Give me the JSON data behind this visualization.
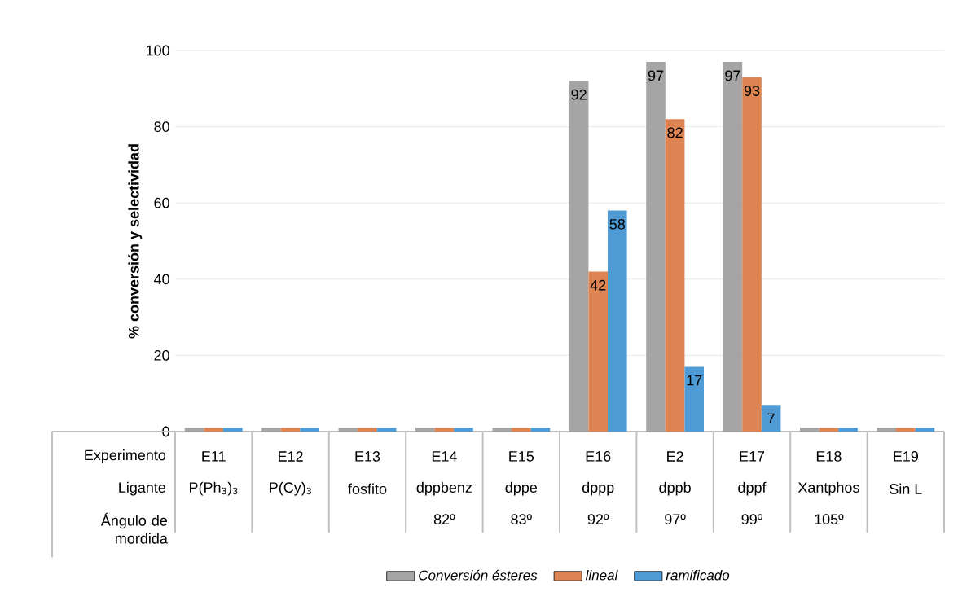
{
  "chart_data": {
    "type": "bar",
    "ylabel": "% conversión y selectividad",
    "categories": [
      "E11",
      "E12",
      "E13",
      "E14",
      "E15",
      "E16",
      "E2",
      "E17",
      "E18",
      "E19"
    ],
    "series": [
      {
        "name": "Conversión ésteres",
        "color": "#a5a5a5",
        "values": [
          1,
          1,
          1,
          1,
          1,
          92,
          97,
          97,
          1,
          1
        ],
        "value_labels": [
          null,
          null,
          null,
          null,
          null,
          "92",
          "97",
          "97",
          null,
          null
        ]
      },
      {
        "name": "lineal",
        "color": "#dd8452",
        "values": [
          1,
          1,
          1,
          1,
          1,
          42,
          82,
          93,
          1,
          1
        ],
        "value_labels": [
          null,
          null,
          null,
          null,
          null,
          "42",
          "82",
          "93",
          null,
          null
        ]
      },
      {
        "name": "ramificado",
        "color": "#4e9bd6",
        "values": [
          1,
          1,
          1,
          1,
          1,
          58,
          17,
          7,
          1,
          1
        ],
        "value_labels": [
          null,
          null,
          null,
          null,
          null,
          "58",
          "17",
          "7",
          null,
          null
        ]
      }
    ],
    "ylim": [
      0,
      100
    ],
    "yticks": [
      0,
      20,
      40,
      60,
      80,
      100
    ],
    "grid": "y",
    "legend": "bottom",
    "annotations": [
      "Experimento",
      "Ligante",
      "Ángulo de mordida",
      "P(Ph$_{3}$)$_{3}$",
      "P(Cy)$_{3}$",
      "fosfito",
      "dppbenz",
      "dppe",
      "dppp",
      "dppb",
      "dppf",
      "Xantphos",
      "Sin L",
      "82º",
      "83º",
      "92º",
      "97º",
      "99º",
      "105º"
    ]
  }
}
